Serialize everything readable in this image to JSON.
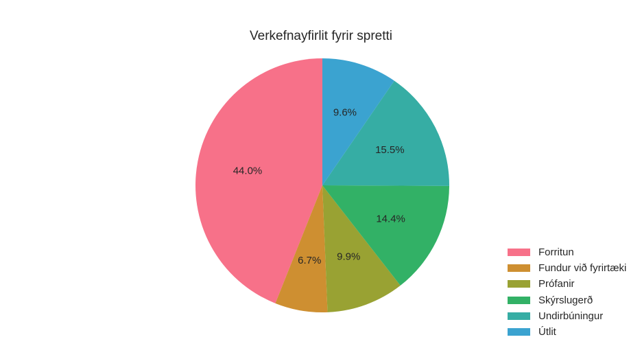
{
  "chart_data": {
    "type": "pie",
    "title": "Verkefnayfirlit fyrir spretti",
    "start_angle_deg": 90,
    "direction": "counterclockwise",
    "legend_position": "bottom-right",
    "slices": [
      {
        "label": "Forritun",
        "value": 44.0,
        "pct_label": "44.0%",
        "color": "#f77189"
      },
      {
        "label": "Fundur við fyrirtæki",
        "value": 6.7,
        "pct_label": "6.7%",
        "color": "#ce8f31"
      },
      {
        "label": "Prófanir",
        "value": 9.9,
        "pct_label": "9.9%",
        "color": "#99a233"
      },
      {
        "label": "Skýrslugerð",
        "value": 14.4,
        "pct_label": "14.4%",
        "color": "#32b166"
      },
      {
        "label": "Undirbúningur",
        "value": 15.5,
        "pct_label": "15.5%",
        "color": "#36ada4"
      },
      {
        "label": "Útlit",
        "value": 9.6,
        "pct_label": "9.6%",
        "color": "#3ba3d0"
      }
    ]
  }
}
